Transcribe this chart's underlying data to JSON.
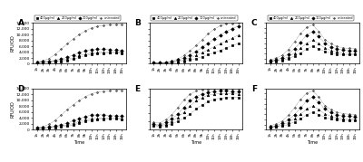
{
  "panel_labels": [
    "A",
    "B",
    "C",
    "D",
    "E",
    "F"
  ],
  "legend_labels": [
    "400µg/ml",
    "200µg/ml",
    "100µg/ml",
    "untreated"
  ],
  "markers": [
    "s",
    "^",
    "D",
    "."
  ],
  "background_color": "#ffffff",
  "panel_configs": {
    "A": {
      "ylim": [
        0,
        14000
      ],
      "yticks": [
        0,
        2000,
        4000,
        6000,
        8000,
        10000,
        12000,
        14000
      ],
      "series": [
        [
          400,
          500,
          600,
          700,
          900,
          1200,
          1600,
          2200,
          2800,
          3200,
          3500,
          3600,
          3700,
          3700,
          3600
        ],
        [
          500,
          600,
          700,
          900,
          1200,
          1600,
          2100,
          2800,
          3300,
          3700,
          3900,
          4000,
          4000,
          4000,
          3900
        ],
        [
          600,
          700,
          900,
          1200,
          1700,
          2200,
          3000,
          3800,
          4500,
          4900,
          5100,
          5000,
          4800,
          4700,
          4600
        ],
        [
          800,
          1000,
          1800,
          3200,
          5000,
          6800,
          8500,
          10000,
          11200,
          12200,
          12800,
          13100,
          13300,
          13400,
          13400
        ]
      ]
    },
    "B": {
      "ylim": [
        0,
        35000
      ],
      "yticks": [
        0,
        5000,
        10000,
        15000,
        20000,
        25000,
        30000,
        35000
      ],
      "series": [
        [
          700,
          600,
          700,
          1000,
          1500,
          2200,
          3200,
          4500,
          6000,
          7800,
          9500,
          11500,
          13500,
          15500,
          17500
        ],
        [
          800,
          700,
          900,
          1400,
          2200,
          3400,
          5000,
          7000,
          9500,
          12000,
          14500,
          17000,
          19500,
          22000,
          24500
        ],
        [
          900,
          800,
          1100,
          1900,
          3200,
          5000,
          7500,
          10500,
          14000,
          17500,
          21000,
          24500,
          27500,
          30000,
          32000
        ],
        [
          1100,
          900,
          1300,
          2400,
          4200,
          7000,
          11000,
          15500,
          20500,
          25500,
          29500,
          32500,
          34000,
          34500,
          34800
        ]
      ]
    },
    "C": {
      "ylim": [
        0,
        8000
      ],
      "yticks": [
        0,
        1000,
        2000,
        3000,
        4000,
        5000,
        6000,
        7000,
        8000
      ],
      "series": [
        [
          400,
          500,
          700,
          1000,
          1500,
          2100,
          2900,
          3400,
          2900,
          2400,
          2100,
          1900,
          1800,
          1800,
          1800
        ],
        [
          500,
          600,
          900,
          1400,
          2100,
          3000,
          4000,
          4600,
          3900,
          3100,
          2600,
          2300,
          2100,
          2000,
          2000
        ],
        [
          600,
          800,
          1200,
          1900,
          2900,
          4200,
          5600,
          6300,
          5300,
          4000,
          3300,
          2900,
          2700,
          2600,
          2500
        ],
        [
          800,
          1100,
          1700,
          2800,
          4300,
          5900,
          7100,
          7600,
          6300,
          4700,
          3900,
          3400,
          3100,
          3000,
          2900
        ]
      ]
    },
    "D": {
      "ylim": [
        0,
        14000
      ],
      "yticks": [
        0,
        2000,
        4000,
        6000,
        8000,
        10000,
        12000,
        14000
      ],
      "series": [
        [
          400,
          500,
          600,
          700,
          900,
          1200,
          1600,
          2200,
          2800,
          3200,
          3500,
          3600,
          3700,
          3700,
          3600
        ],
        [
          500,
          600,
          700,
          900,
          1200,
          1600,
          2100,
          2800,
          3300,
          3700,
          3900,
          4000,
          4000,
          4000,
          3900
        ],
        [
          600,
          700,
          900,
          1200,
          1700,
          2200,
          3000,
          3800,
          4500,
          4900,
          5100,
          5000,
          4800,
          4700,
          4600
        ],
        [
          800,
          1000,
          1800,
          3200,
          5000,
          6800,
          8500,
          10000,
          11200,
          12200,
          12800,
          13100,
          13300,
          13400,
          13400
        ]
      ]
    },
    "E": {
      "ylim": [
        0,
        5000
      ],
      "yticks": [
        0,
        1000,
        2000,
        3000,
        4000,
        5000
      ],
      "series": [
        [
          500,
          400,
          500,
          700,
          1000,
          1400,
          1900,
          2500,
          3000,
          3400,
          3700,
          3800,
          3900,
          3900,
          3900
        ],
        [
          600,
          500,
          700,
          1000,
          1500,
          2100,
          2900,
          3500,
          3900,
          4200,
          4300,
          4400,
          4400,
          4400,
          4300
        ],
        [
          700,
          600,
          900,
          1300,
          1900,
          2700,
          3500,
          4000,
          4300,
          4500,
          4600,
          4700,
          4700,
          4600,
          4600
        ],
        [
          900,
          800,
          1200,
          1800,
          2700,
          3600,
          4300,
          4700,
          4900,
          4900,
          5000,
          5000,
          5000,
          5000,
          5000
        ]
      ]
    },
    "F": {
      "ylim": [
        0,
        8000
      ],
      "yticks": [
        0,
        1000,
        2000,
        3000,
        4000,
        5000,
        6000,
        7000,
        8000
      ],
      "series": [
        [
          400,
          500,
          700,
          1000,
          1500,
          2100,
          2900,
          3400,
          2900,
          2400,
          2100,
          1900,
          1800,
          1800,
          1800
        ],
        [
          500,
          600,
          900,
          1400,
          2100,
          3000,
          4000,
          4600,
          3900,
          3100,
          2600,
          2300,
          2100,
          2000,
          2000
        ],
        [
          600,
          800,
          1200,
          1900,
          2900,
          4200,
          5600,
          6300,
          5300,
          4000,
          3300,
          2900,
          2700,
          2600,
          2500
        ],
        [
          800,
          1100,
          1700,
          2800,
          4300,
          5900,
          7100,
          7600,
          6300,
          4700,
          3900,
          3400,
          3100,
          3000,
          2900
        ]
      ]
    }
  },
  "time_labels": [
    "1h",
    "2h",
    "3h",
    "4h",
    "5h",
    "6h",
    "7h",
    "8h",
    "9h",
    "10h",
    "11h",
    "12h",
    "13h",
    "14h",
    "15h"
  ],
  "ylabel": "RFU/OD",
  "xlabel": "Time"
}
